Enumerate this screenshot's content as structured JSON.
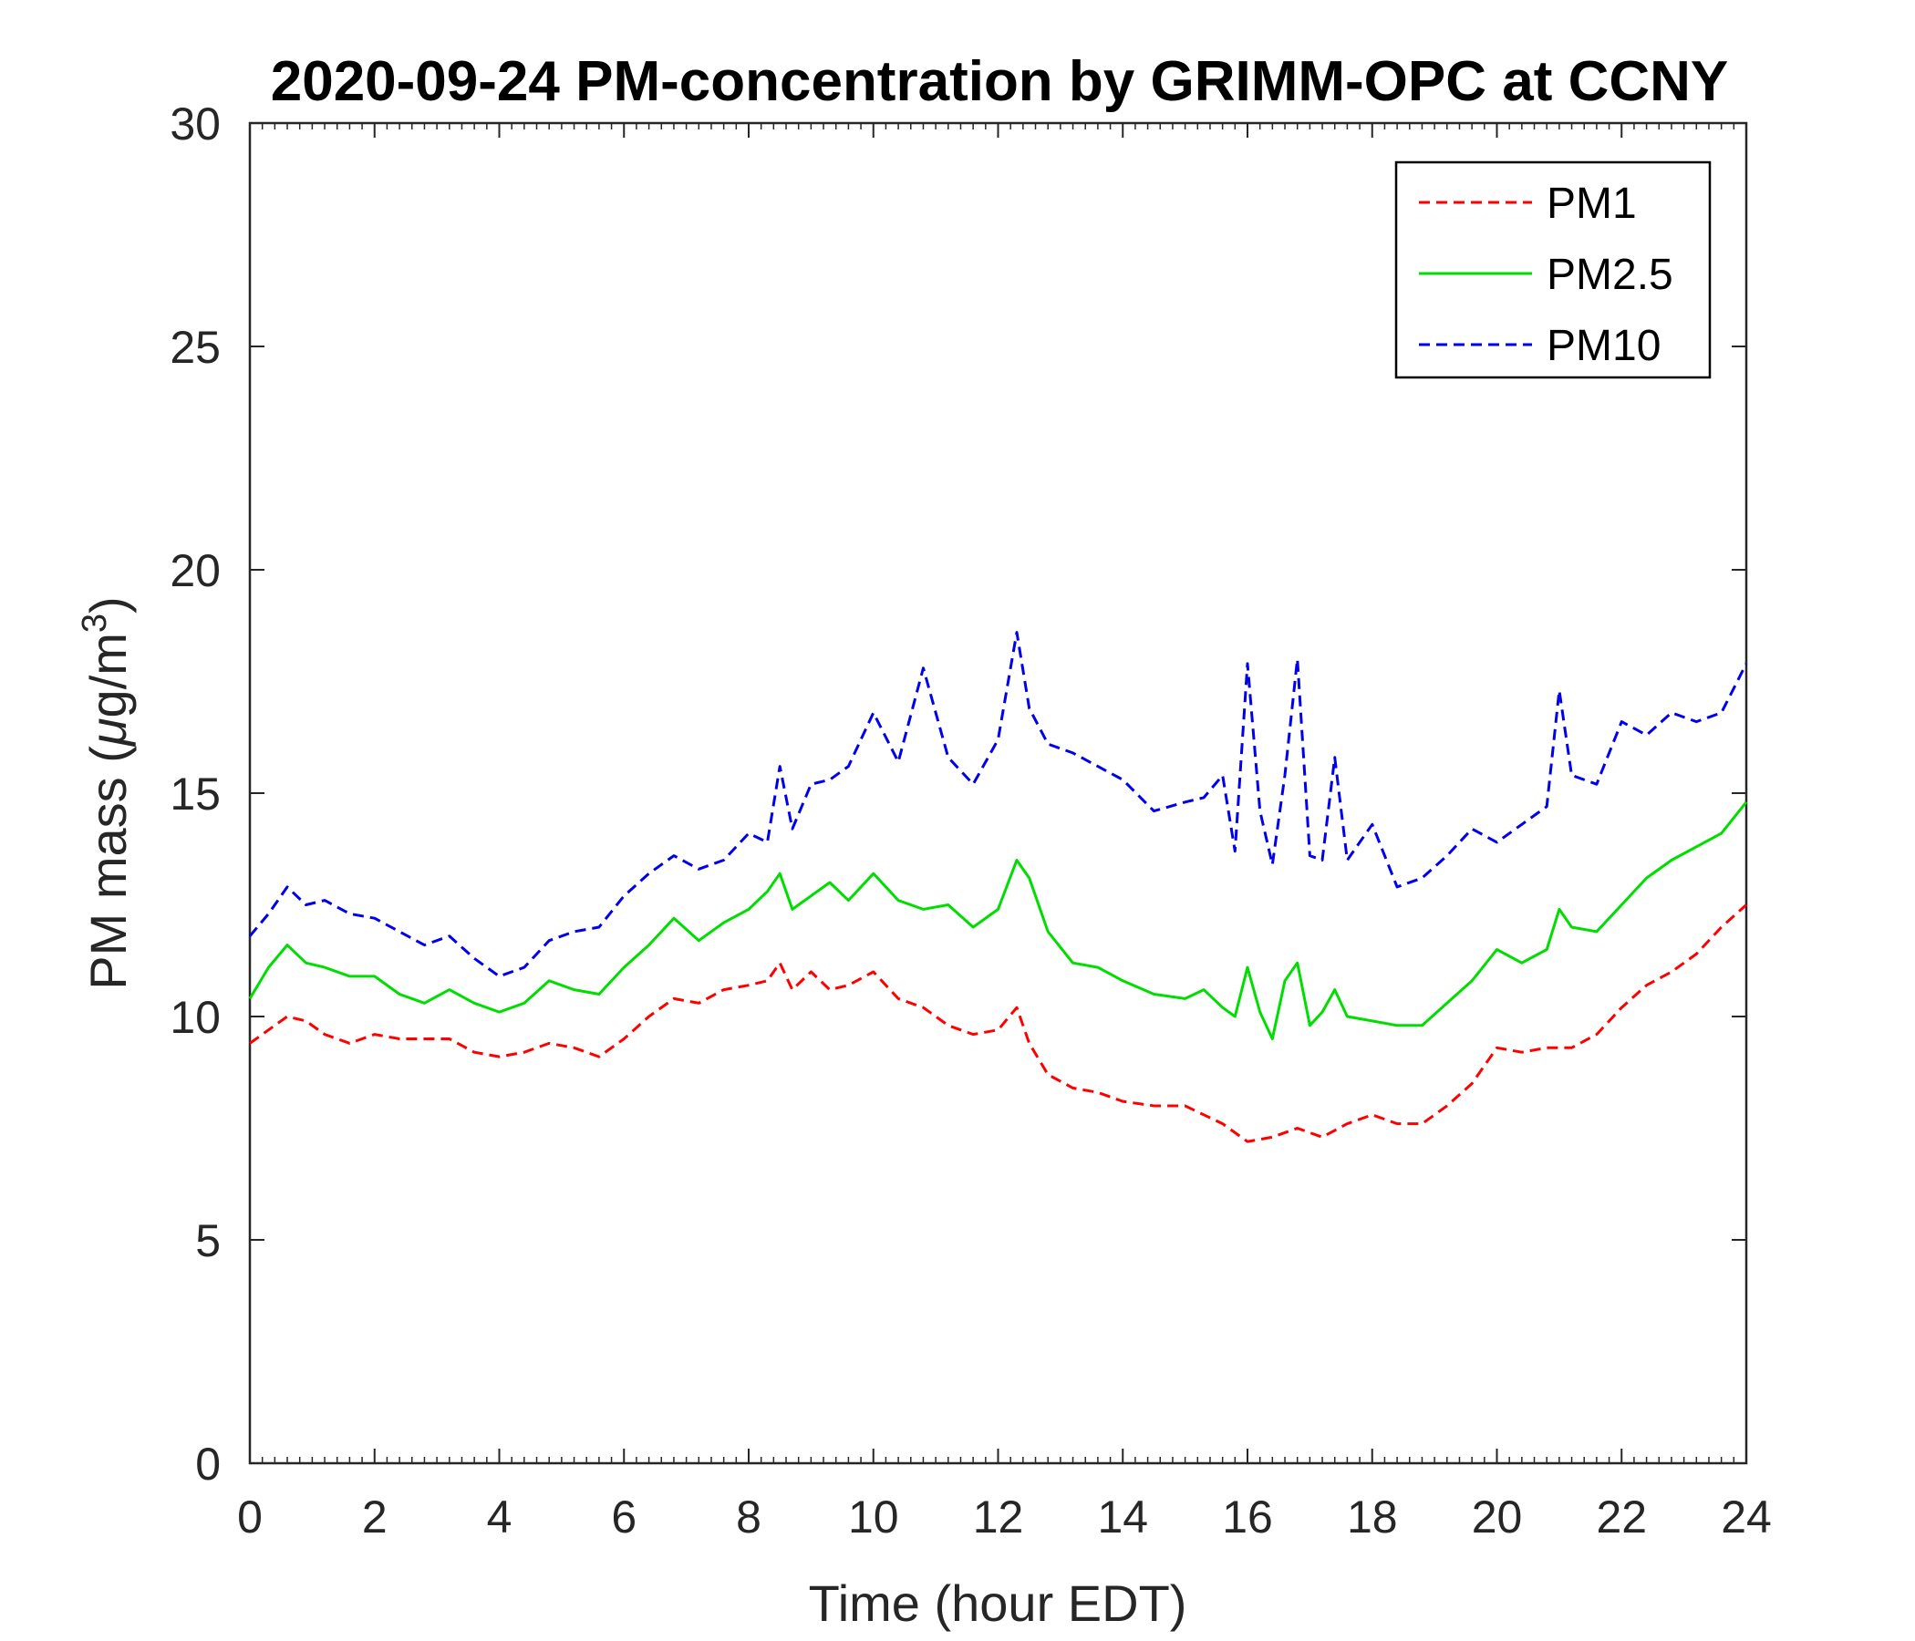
{
  "chart_data": {
    "type": "line",
    "title": "2020-09-24 PM-concentration by GRIMM-OPC at CCNY",
    "xlabel": "Time (hour EDT)",
    "ylabel_main": "PM mass (",
    "ylabel_mu": "μ",
    "ylabel_unit": "g/m",
    "ylabel_sup": "3",
    "ylabel_close": ")",
    "xlim": [
      0,
      24
    ],
    "ylim": [
      0,
      30
    ],
    "xticks": [
      0,
      2,
      4,
      6,
      8,
      10,
      12,
      14,
      16,
      18,
      20,
      22,
      24
    ],
    "yticks": [
      0,
      5,
      10,
      15,
      20,
      25,
      30
    ],
    "legend_position": "top-right",
    "series": [
      {
        "name": "PM1",
        "color": "#ff0000",
        "style": "dashed",
        "x": [
          0,
          0.3,
          0.6,
          0.9,
          1.2,
          1.6,
          2.0,
          2.4,
          2.8,
          3.2,
          3.6,
          4.0,
          4.4,
          4.8,
          5.2,
          5.6,
          6.0,
          6.4,
          6.8,
          7.2,
          7.6,
          8.0,
          8.3,
          8.5,
          8.7,
          9.0,
          9.3,
          9.6,
          10.0,
          10.4,
          10.8,
          11.2,
          11.6,
          12.0,
          12.3,
          12.5,
          12.8,
          13.2,
          13.6,
          14.0,
          14.5,
          15.0,
          15.3,
          15.6,
          16.0,
          16.4,
          16.8,
          17.2,
          17.6,
          18.0,
          18.4,
          18.8,
          19.2,
          19.6,
          20.0,
          20.4,
          20.8,
          21.2,
          21.6,
          22.0,
          22.4,
          22.8,
          23.2,
          23.6,
          24.0
        ],
        "values": [
          9.4,
          9.7,
          10.0,
          9.9,
          9.6,
          9.4,
          9.6,
          9.5,
          9.5,
          9.5,
          9.2,
          9.1,
          9.2,
          9.4,
          9.3,
          9.1,
          9.5,
          10.0,
          10.4,
          10.3,
          10.6,
          10.7,
          10.8,
          11.2,
          10.6,
          11.0,
          10.6,
          10.7,
          11.0,
          10.4,
          10.2,
          9.8,
          9.6,
          9.7,
          10.2,
          9.4,
          8.7,
          8.4,
          8.3,
          8.1,
          8.0,
          8.0,
          7.8,
          7.6,
          7.2,
          7.3,
          7.5,
          7.3,
          7.6,
          7.8,
          7.6,
          7.6,
          8.0,
          8.5,
          9.3,
          9.2,
          9.3,
          9.3,
          9.6,
          10.2,
          10.7,
          11.0,
          11.4,
          12.0,
          12.5
        ]
      },
      {
        "name": "PM2.5",
        "color": "#00dd00",
        "style": "solid",
        "x": [
          0,
          0.3,
          0.6,
          0.9,
          1.2,
          1.6,
          2.0,
          2.4,
          2.8,
          3.2,
          3.6,
          4.0,
          4.4,
          4.8,
          5.2,
          5.6,
          6.0,
          6.4,
          6.8,
          7.2,
          7.6,
          8.0,
          8.3,
          8.5,
          8.7,
          9.0,
          9.3,
          9.6,
          10.0,
          10.4,
          10.8,
          11.2,
          11.6,
          12.0,
          12.3,
          12.5,
          12.8,
          13.2,
          13.6,
          14.0,
          14.5,
          15.0,
          15.3,
          15.6,
          15.8,
          16.0,
          16.2,
          16.4,
          16.6,
          16.8,
          17.0,
          17.2,
          17.4,
          17.6,
          18.0,
          18.4,
          18.8,
          19.2,
          19.6,
          20.0,
          20.4,
          20.8,
          21.0,
          21.2,
          21.6,
          22.0,
          22.4,
          22.8,
          23.2,
          23.6,
          24.0
        ],
        "values": [
          10.4,
          11.1,
          11.6,
          11.2,
          11.1,
          10.9,
          10.9,
          10.5,
          10.3,
          10.6,
          10.3,
          10.1,
          10.3,
          10.8,
          10.6,
          10.5,
          11.1,
          11.6,
          12.2,
          11.7,
          12.1,
          12.4,
          12.8,
          13.2,
          12.4,
          12.7,
          13.0,
          12.6,
          13.2,
          12.6,
          12.4,
          12.5,
          12.0,
          12.4,
          13.5,
          13.1,
          11.9,
          11.2,
          11.1,
          10.8,
          10.5,
          10.4,
          10.6,
          10.2,
          10.0,
          11.1,
          10.1,
          9.5,
          10.8,
          11.2,
          9.8,
          10.1,
          10.6,
          10.0,
          9.9,
          9.8,
          9.8,
          10.3,
          10.8,
          11.5,
          11.2,
          11.5,
          12.4,
          12.0,
          11.9,
          12.5,
          13.1,
          13.5,
          13.8,
          14.1,
          14.8
        ]
      },
      {
        "name": "PM10",
        "color": "#0000ee",
        "style": "dashed",
        "x": [
          0,
          0.3,
          0.6,
          0.9,
          1.2,
          1.6,
          2.0,
          2.4,
          2.8,
          3.2,
          3.6,
          4.0,
          4.4,
          4.8,
          5.2,
          5.6,
          6.0,
          6.4,
          6.8,
          7.2,
          7.6,
          8.0,
          8.3,
          8.5,
          8.7,
          9.0,
          9.3,
          9.6,
          10.0,
          10.4,
          10.8,
          11.2,
          11.6,
          12.0,
          12.3,
          12.5,
          12.8,
          13.2,
          13.6,
          14.0,
          14.5,
          15.0,
          15.3,
          15.6,
          15.8,
          16.0,
          16.2,
          16.4,
          16.6,
          16.8,
          17.0,
          17.2,
          17.4,
          17.6,
          18.0,
          18.4,
          18.8,
          19.2,
          19.6,
          20.0,
          20.4,
          20.8,
          21.0,
          21.2,
          21.6,
          22.0,
          22.4,
          22.8,
          23.2,
          23.6,
          24.0
        ],
        "values": [
          11.8,
          12.3,
          12.9,
          12.5,
          12.6,
          12.3,
          12.2,
          11.9,
          11.6,
          11.8,
          11.3,
          10.9,
          11.1,
          11.7,
          11.9,
          12.0,
          12.7,
          13.2,
          13.6,
          13.3,
          13.5,
          14.1,
          13.9,
          15.6,
          14.2,
          15.2,
          15.3,
          15.6,
          16.8,
          15.7,
          17.8,
          15.8,
          15.2,
          16.2,
          18.6,
          16.9,
          16.1,
          15.9,
          15.6,
          15.3,
          14.6,
          14.8,
          14.9,
          15.4,
          13.7,
          17.9,
          14.6,
          13.4,
          15.4,
          18.0,
          13.6,
          13.5,
          15.8,
          13.5,
          14.3,
          12.9,
          13.1,
          13.6,
          14.2,
          13.9,
          14.3,
          14.7,
          17.3,
          15.4,
          15.2,
          16.6,
          16.3,
          16.8,
          16.6,
          16.8,
          17.9
        ]
      }
    ]
  }
}
